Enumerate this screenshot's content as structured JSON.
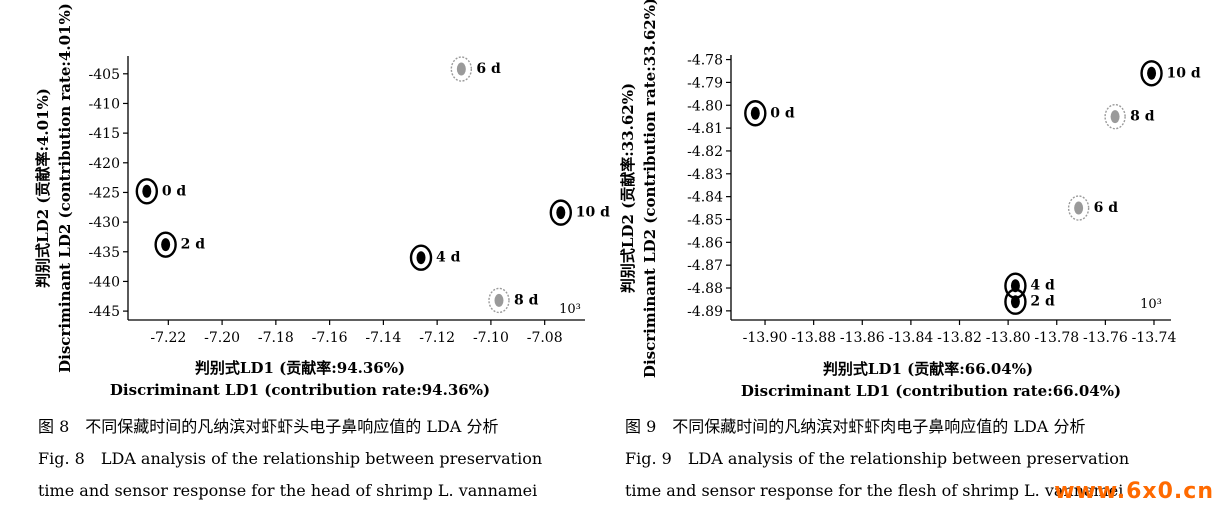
{
  "figures": [
    {
      "caption_cn": "图 8　不同保藏时间的凡纳滨对虾虾头电子鼻响应值的 LDA 分析",
      "caption_en_1": "Fig. 8　LDA analysis of the relationship between preservation",
      "caption_en_2": "time and sensor response for the head of shrimp L. vannamei"
    },
    {
      "caption_cn": "图 9　不同保藏时间的凡纳滨对虾虾肉电子鼻响应值的 LDA 分析",
      "caption_en_1": "Fig. 9　LDA analysis of the relationship between preservation",
      "caption_en_2": "time and sensor response for the flesh of shrimp L. vannamei"
    }
  ],
  "watermark": "www.6x0.cn",
  "chart_data": [
    {
      "type": "scatter",
      "xlabel_cn": "判别式LD1 (贡献率:94.36%)",
      "xlabel_en": "Discriminant LD1 (contribution rate:94.36%)",
      "ylabel_cn": "判别式LD2 (贡献率:4.01%)",
      "ylabel_en": "Discriminant LD2 (contribution rate:4.01%)",
      "scale_note": "10³",
      "xlim": [
        -7.235,
        -7.065
      ],
      "ylim": [
        -446.5,
        -402
      ],
      "xticks": [
        -7.22,
        -7.2,
        -7.18,
        -7.16,
        -7.14,
        -7.12,
        -7.1,
        -7.08
      ],
      "xtick_labels": [
        "-7.22",
        "-7.20",
        "-7.18",
        "-7.16",
        "-7.14",
        "-7.12",
        "-7.10",
        "-7.08"
      ],
      "yticks": [
        -405,
        -410,
        -415,
        -420,
        -425,
        -430,
        -435,
        -440,
        -445
      ],
      "ytick_labels": [
        "-405",
        "-410",
        "-415",
        "-420",
        "-425",
        "-430",
        "-435",
        "-440",
        "-445"
      ],
      "series": [
        {
          "name": "0 d",
          "x": -7.228,
          "y": -424.8,
          "color": "#000000"
        },
        {
          "name": "2 d",
          "x": -7.221,
          "y": -433.8,
          "color": "#000000"
        },
        {
          "name": "4 d",
          "x": -7.126,
          "y": -436.0,
          "color": "#000000"
        },
        {
          "name": "6 d",
          "x": -7.111,
          "y": -404.2,
          "color": "#9a9a9a"
        },
        {
          "name": "8 d",
          "x": -7.097,
          "y": -443.2,
          "color": "#9a9a9a"
        },
        {
          "name": "10 d",
          "x": -7.074,
          "y": -428.4,
          "color": "#000000"
        }
      ]
    },
    {
      "type": "scatter",
      "xlabel_cn": "判别式LD1 (贡献率:66.04%)",
      "xlabel_en": "Discriminant LD1 (contribution rate:66.04%)",
      "ylabel_cn": "判别式LD2 (贡献率:33.62%)",
      "ylabel_en": "Discriminant LD2 (contribution rate:33.62%)",
      "scale_note": "10³",
      "xlim": [
        -13.914,
        -13.733
      ],
      "ylim": [
        -4.894,
        -4.778
      ],
      "xticks": [
        -13.9,
        -13.88,
        -13.86,
        -13.84,
        -13.82,
        -13.8,
        -13.78,
        -13.76,
        -13.74
      ],
      "xtick_labels": [
        "-13.90",
        "-13.88",
        "-13.86",
        "-13.84",
        "-13.82",
        "-13.80",
        "-13.78",
        "-13.76",
        "-13.74"
      ],
      "yticks": [
        -4.78,
        -4.79,
        -4.8,
        -4.81,
        -4.82,
        -4.83,
        -4.84,
        -4.85,
        -4.86,
        -4.87,
        -4.88,
        -4.89
      ],
      "ytick_labels": [
        "-4.78",
        "-4.79",
        "-4.80",
        "-4.81",
        "-4.82",
        "-4.83",
        "-4.84",
        "-4.85",
        "-4.86",
        "-4.87",
        "-4.88",
        "-4.89"
      ],
      "series": [
        {
          "name": "0 d",
          "x": -13.904,
          "y": -4.8035,
          "color": "#000000"
        },
        {
          "name": "2 d",
          "x": -13.797,
          "y": -4.886,
          "color": "#000000"
        },
        {
          "name": "4 d",
          "x": -13.797,
          "y": -4.879,
          "color": "#000000"
        },
        {
          "name": "6 d",
          "x": -13.771,
          "y": -4.845,
          "color": "#9a9a9a"
        },
        {
          "name": "8 d",
          "x": -13.756,
          "y": -4.805,
          "color": "#9a9a9a"
        },
        {
          "name": "10 d",
          "x": -13.741,
          "y": -4.786,
          "color": "#000000"
        }
      ]
    }
  ]
}
